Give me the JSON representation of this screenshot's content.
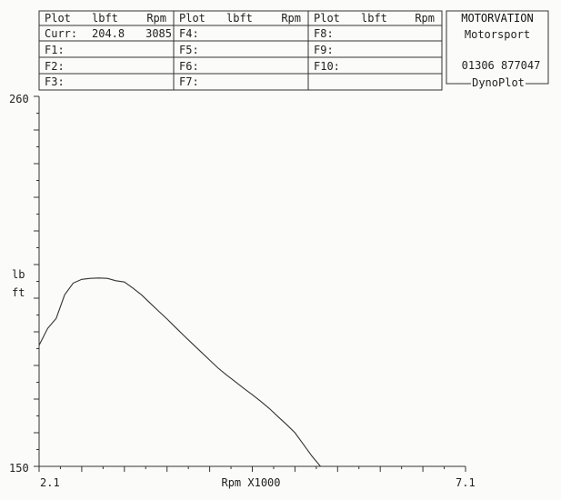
{
  "table": {
    "groups": [
      {
        "h_plot": "Plot",
        "h_lbft": "lbft",
        "h_rpm": "Rpm",
        "rows": [
          {
            "label": "Curr:",
            "lbft": "204.8",
            "rpm": "3085"
          },
          {
            "label": "F1:",
            "lbft": "",
            "rpm": ""
          },
          {
            "label": "F2:",
            "lbft": "",
            "rpm": ""
          },
          {
            "label": "F3:",
            "lbft": "",
            "rpm": ""
          }
        ]
      },
      {
        "h_plot": "Plot",
        "h_lbft": "lbft",
        "h_rpm": "Rpm",
        "rows": [
          {
            "label": "F4:",
            "lbft": "",
            "rpm": ""
          },
          {
            "label": "F5:",
            "lbft": "",
            "rpm": ""
          },
          {
            "label": "F6:",
            "lbft": "",
            "rpm": ""
          },
          {
            "label": "F7:",
            "lbft": "",
            "rpm": ""
          }
        ]
      },
      {
        "h_plot": "Plot",
        "h_lbft": "lbft",
        "h_rpm": "Rpm",
        "rows": [
          {
            "label": "F8:",
            "lbft": "",
            "rpm": ""
          },
          {
            "label": "F9:",
            "lbft": "",
            "rpm": ""
          },
          {
            "label": "F10:",
            "lbft": "",
            "rpm": ""
          },
          {
            "label": "",
            "lbft": "",
            "rpm": ""
          }
        ]
      }
    ]
  },
  "company": {
    "name": "MOTORVATION",
    "sub": "Motorsport",
    "phone": "01306 877047",
    "product": "DynoPlot"
  },
  "chart_data": {
    "type": "line",
    "title": "",
    "xlabel": "Rpm X1000",
    "ylabel_line1": "lb",
    "ylabel_line2": "ft",
    "xlim": [
      2.1,
      7.1
    ],
    "ylim": [
      150,
      260
    ],
    "x_tick_labels": [
      "2.1",
      "7.1"
    ],
    "y_tick_labels": [
      "150",
      "260"
    ],
    "grid": false,
    "series": [
      {
        "x": [
          2.1,
          2.2,
          2.3,
          2.4,
          2.5,
          2.6,
          2.7,
          2.8,
          2.9,
          3.0,
          3.1,
          3.2,
          3.3,
          3.4,
          3.5,
          3.6,
          3.7,
          3.8,
          3.9,
          4.0,
          4.1,
          4.2,
          4.3,
          4.4,
          4.5,
          4.6,
          4.7,
          4.8,
          4.9,
          5.0,
          5.1,
          5.2,
          5.3,
          5.4,
          5.5,
          5.6
        ],
        "y": [
          186,
          191,
          194,
          201,
          204.5,
          205.6,
          205.9,
          206.0,
          205.9,
          205.2,
          204.8,
          203.0,
          201.0,
          198.6,
          196.2,
          193.8,
          191.3,
          188.8,
          186.4,
          184.0,
          181.6,
          179.2,
          177.1,
          175.2,
          173.2,
          171.3,
          169.3,
          167.2,
          164.8,
          162.5,
          160.0,
          156.5,
          153.0,
          150.0,
          150,
          150
        ]
      }
    ]
  }
}
